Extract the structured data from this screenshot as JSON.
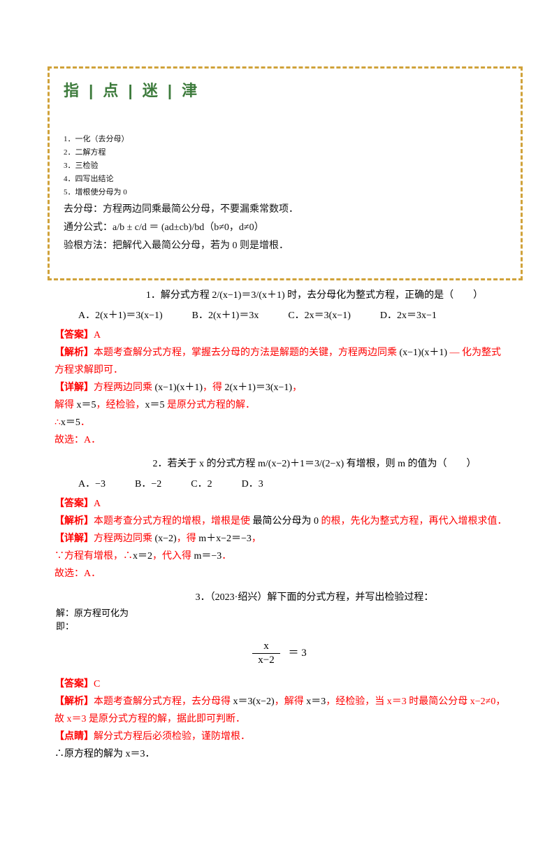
{
  "colors": {
    "accent_red": "#fe0000",
    "title_green": "#3d7b3c",
    "box_border_gold": "#d0a23a"
  },
  "tips_box": {
    "title": "指 | 点 | 迷 | 津",
    "lines": [
      "1．一化（去分母）",
      "2．二解方程",
      "3．三检验",
      "4．四写出结论",
      "5．增根使分母为 0",
      "去分母：方程两边同乘最简公分母，不要漏乘常数项．",
      "通分公式：a/b ± c/d ＝ (ad±cb)/bd（b≠0，d≠0）",
      "验根方法：把解代入最简公分母，若为 0 则是增根．"
    ]
  },
  "sections": [
    {
      "stem": "1．解分式方程 2/(x−1)＝3/(x＋1) 时，去分母化为整式方程，正确的是（　　）",
      "options": [
        "A．2(x＋1)＝3(x−1)",
        "B．2(x＋1)＝3x",
        "C．2x＝3(x−1)",
        "D．2x＝3x−1"
      ],
      "lines": [
        {
          "lb": "【答案】",
          "r1": "A"
        },
        {
          "lb": "【解析】",
          "r1": "本题考查解分式方程，掌握去分母的方法是解题的关键，方程两边同乘 ",
          "k1": "(x−1)(x＋1)",
          "r2": " — 化为整式方程求解即可．"
        },
        {
          "lb": "【详解】",
          "r1": "方程两边同乘 ",
          "k1": "(x−1)(x＋1)",
          "r2": "，得 ",
          "k2": "2(x＋1)＝3(x−1)",
          "r3": "，"
        },
        {
          "r1": "解得 ",
          "k1": "x＝5",
          "r2": "，经检验，",
          "k2": "x＝5",
          "r3": " 是原分式方程的解．"
        },
        {
          "r1": "∴",
          "k1": "x＝5",
          "r2": "．"
        },
        {
          "r1": "故选：A．"
        }
      ]
    },
    {
      "stem": "2．若关于 x 的分式方程 m/(x−2)＋1＝3/(2−x) 有增根，则 m 的值为（　　）",
      "options": [
        "A．−3",
        "B．−2",
        "C．2",
        "D．3"
      ],
      "lines": [
        {
          "lb": "【答案】",
          "r1": "A"
        },
        {
          "lb": "【解析】",
          "r1": "本题考查分式方程的增根，增根是使 ",
          "k1": "最简公分母为 0",
          "r2": " 的根，先化为整式方程，再代入增根求值．"
        },
        {
          "lb": "【详解】",
          "r1": "方程两边同乘 ",
          "k1": "(x−2)",
          "r2": "，得 ",
          "k2": "m＋x−2＝−3",
          "r3": "，"
        },
        {
          "r1": "∵方程有增根，∴",
          "k1": "x＝2",
          "r2": "，代入得 ",
          "k2": "m＝−3",
          "r3": "．"
        },
        {
          "r1": "故选：A．"
        }
      ]
    },
    {
      "stem": "3．（2023·绍兴）解下面的分式方程，并写出检验过程：",
      "work_lines": [
        "解：原方程可化为",
        "即："
      ],
      "equation": {
        "numerator": "x",
        "denominator": "x−2",
        "rhs": "＝ 3"
      },
      "lines": [
        {
          "lb": "【答案】",
          "r1": "C"
        },
        {
          "lb": "【解析】",
          "r1": "本题考查解分式方程，去分母得 ",
          "k1": "x＝3(x−2)",
          "r2": "，解得 ",
          "k2": "x＝3",
          "r3": "，经检验，当 x＝3 时最简公分母 x−2≠0，故 x＝3 是原分式方程的解，据此即可判断．"
        },
        {
          "lb": "【点睛】",
          "r1": "解分式方程后必须检验，谨防增根．"
        },
        {
          "k1": "∴原方程的解为 x＝3．"
        }
      ]
    }
  ]
}
